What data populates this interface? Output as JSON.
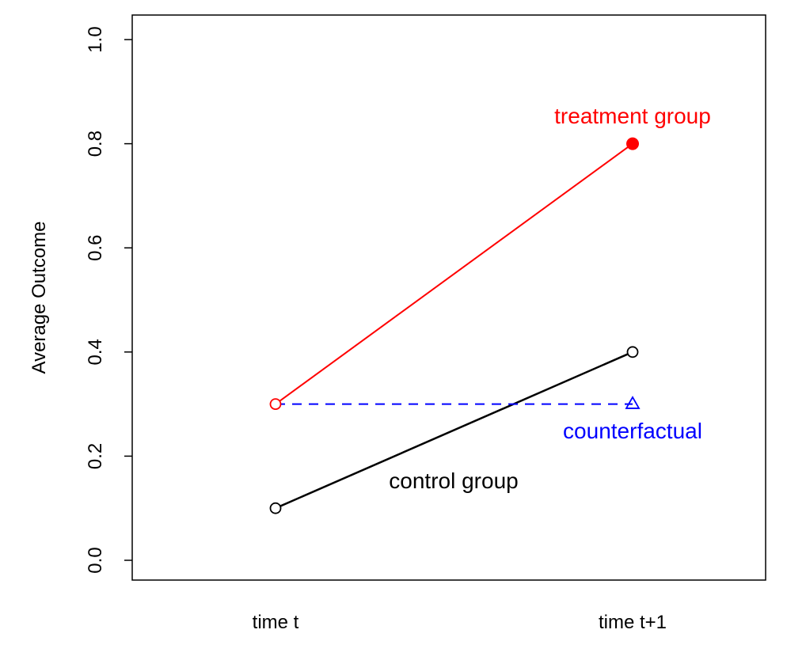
{
  "chart_data": {
    "type": "line",
    "title": "",
    "xlabel": "",
    "ylabel": "Average Outcome",
    "ylim": [
      0.0,
      1.0
    ],
    "yticks": [
      "0.0",
      "0.2",
      "0.4",
      "0.6",
      "0.8",
      "1.0"
    ],
    "categories": [
      "time t",
      "time t+1"
    ],
    "grid": false,
    "series": [
      {
        "key": "treatment",
        "label": "treatment group",
        "values": [
          0.3,
          0.8
        ],
        "color": "#ff0000",
        "line_style": "solid",
        "markers": [
          "open-circle",
          "filled-circle"
        ]
      },
      {
        "key": "control",
        "label": "control group",
        "values": [
          0.1,
          0.4
        ],
        "color": "#000000",
        "line_style": "solid",
        "markers": [
          "open-circle",
          "open-circle"
        ]
      },
      {
        "key": "counterfactual",
        "label": "counterfactual",
        "values": [
          0.3,
          0.3
        ],
        "color": "#0000ff",
        "line_style": "dashed",
        "markers": [
          "none",
          "open-triangle"
        ]
      }
    ]
  }
}
